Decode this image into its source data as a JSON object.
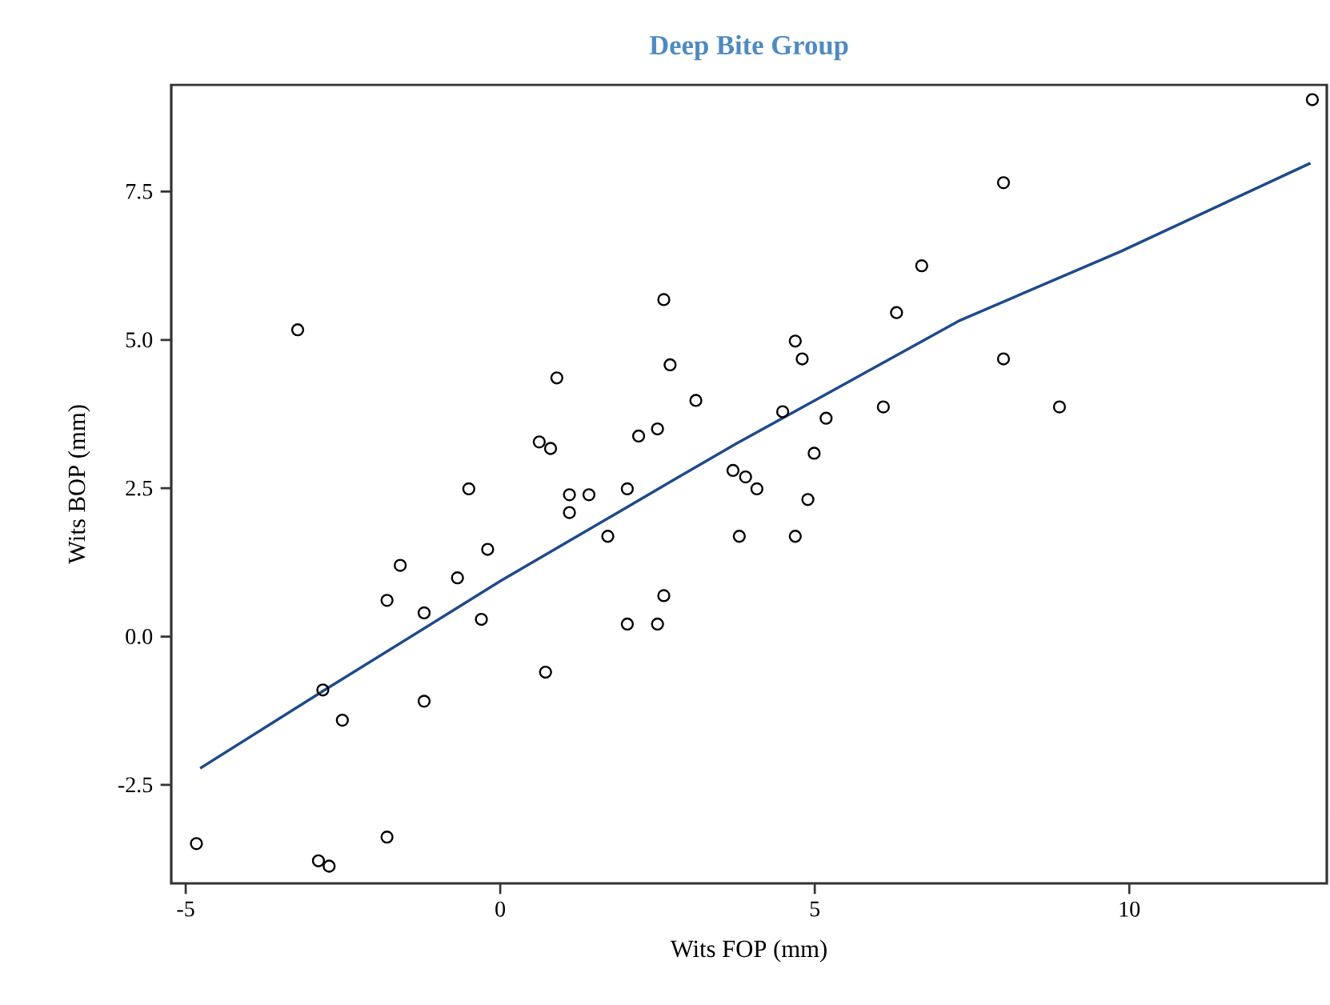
{
  "chart_data": {
    "type": "scatter",
    "title": "Deep Bite Group",
    "xlabel": "Wits FOP (mm)",
    "ylabel": "Wits BOP (mm)",
    "xlim": [
      -5.23,
      13.14
    ],
    "ylim": [
      -4.16,
      9.3
    ],
    "xticks": [
      -5,
      0,
      5,
      10
    ],
    "yticks": [
      {
        "value": -2.5,
        "label": "-2.5"
      },
      {
        "value": 0,
        "label": "0.0"
      },
      {
        "value": 2.5,
        "label": "2.5"
      },
      {
        "value": 5,
        "label": "5.0"
      },
      {
        "value": 7.5,
        "label": "7.5"
      }
    ],
    "grid": false,
    "legend": false,
    "series": [
      {
        "marker": "circle",
        "color": "#000000",
        "x": [
          -4.83,
          -3.22,
          -2.89,
          -2.72,
          -2.82,
          -2.51,
          -1.8,
          -1.59,
          -1.8,
          -1.21,
          -1.21,
          -0.68,
          -0.5,
          -0.3,
          -0.2,
          0.62,
          0.8,
          0.72,
          0.9,
          1.1,
          1.1,
          1.41,
          1.71,
          2.02,
          2.02,
          2.2,
          2.5,
          2.5,
          2.6,
          2.6,
          2.7,
          3.11,
          3.7,
          3.8,
          3.9,
          4.08,
          4.49,
          4.69,
          4.8,
          4.69,
          4.89,
          4.99,
          5.18,
          6.09,
          6.3,
          6.7,
          8.0,
          8.0,
          8.89,
          12.91
        ],
        "values": [
          -3.49,
          5.17,
          -3.78,
          -3.87,
          -0.9,
          -1.41,
          0.61,
          1.2,
          -3.38,
          0.4,
          -1.09,
          0.99,
          2.49,
          0.29,
          1.47,
          3.28,
          3.17,
          -0.6,
          4.36,
          2.39,
          2.09,
          2.39,
          1.69,
          2.49,
          0.21,
          3.38,
          3.5,
          0.21,
          5.68,
          0.69,
          4.58,
          3.98,
          2.8,
          1.69,
          2.69,
          2.49,
          3.79,
          4.98,
          4.68,
          1.69,
          2.31,
          3.09,
          3.68,
          3.87,
          5.46,
          6.25,
          7.65,
          4.68,
          3.87,
          9.05
        ]
      },
      {
        "type": "line",
        "marker": "none",
        "line_style": "solid",
        "color": "#1f4a8a",
        "x": [
          -4.77,
          -2.79,
          0.01,
          2.74,
          3.75,
          5.0,
          7.31,
          9.86,
          12.88
        ],
        "values": [
          -2.22,
          -0.9,
          0.94,
          2.63,
          3.25,
          3.98,
          5.33,
          6.49,
          7.98
        ]
      }
    ]
  }
}
